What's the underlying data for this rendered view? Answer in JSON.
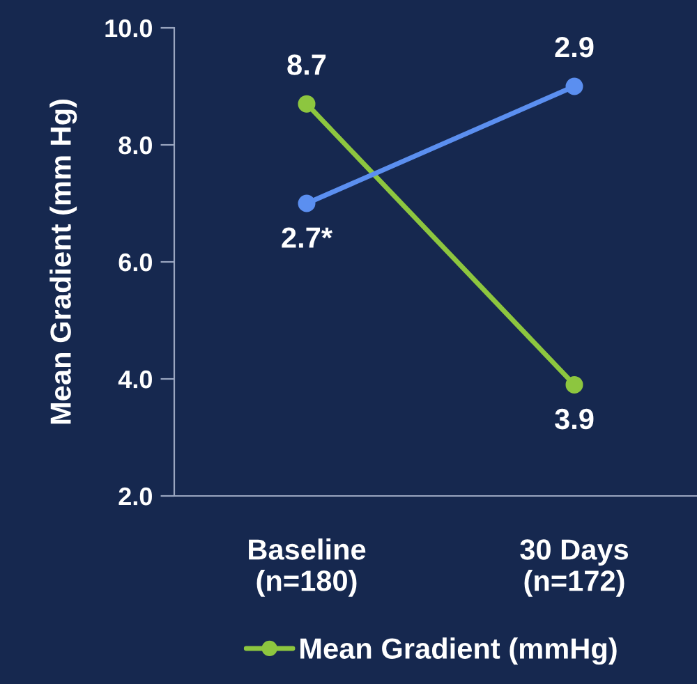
{
  "chart_data": {
    "type": "line",
    "ylabel": "Mean Gradient (mm Hg)",
    "categories": [
      "Baseline\n(n=180)",
      "30 Days\n(n=172)"
    ],
    "ylim": [
      2.0,
      10.0
    ],
    "yticks": [
      {
        "value": 2,
        "label": "2.0"
      },
      {
        "value": 4,
        "label": "4.0"
      },
      {
        "value": 6,
        "label": "6.0"
      },
      {
        "value": 8,
        "label": "8.0"
      },
      {
        "value": 10,
        "label": "10.0"
      }
    ],
    "y2lim": [
      2.2,
      3.0
    ],
    "tick_labels": "xy",
    "series": [
      {
        "name": "Mean Gradient (mmHg)",
        "color": "#8dc63f",
        "values": [
          8.7,
          3.9
        ],
        "value_labels": [
          "8.7",
          "3.9"
        ]
      },
      {
        "color": "#5b8ff0",
        "values": [
          2.7,
          2.9
        ],
        "axis": "y2",
        "value_labels": [
          "2.7*",
          "2.9"
        ]
      }
    ],
    "marker": "circle",
    "line_style": "solid",
    "grid": false,
    "legend": "bottom"
  }
}
